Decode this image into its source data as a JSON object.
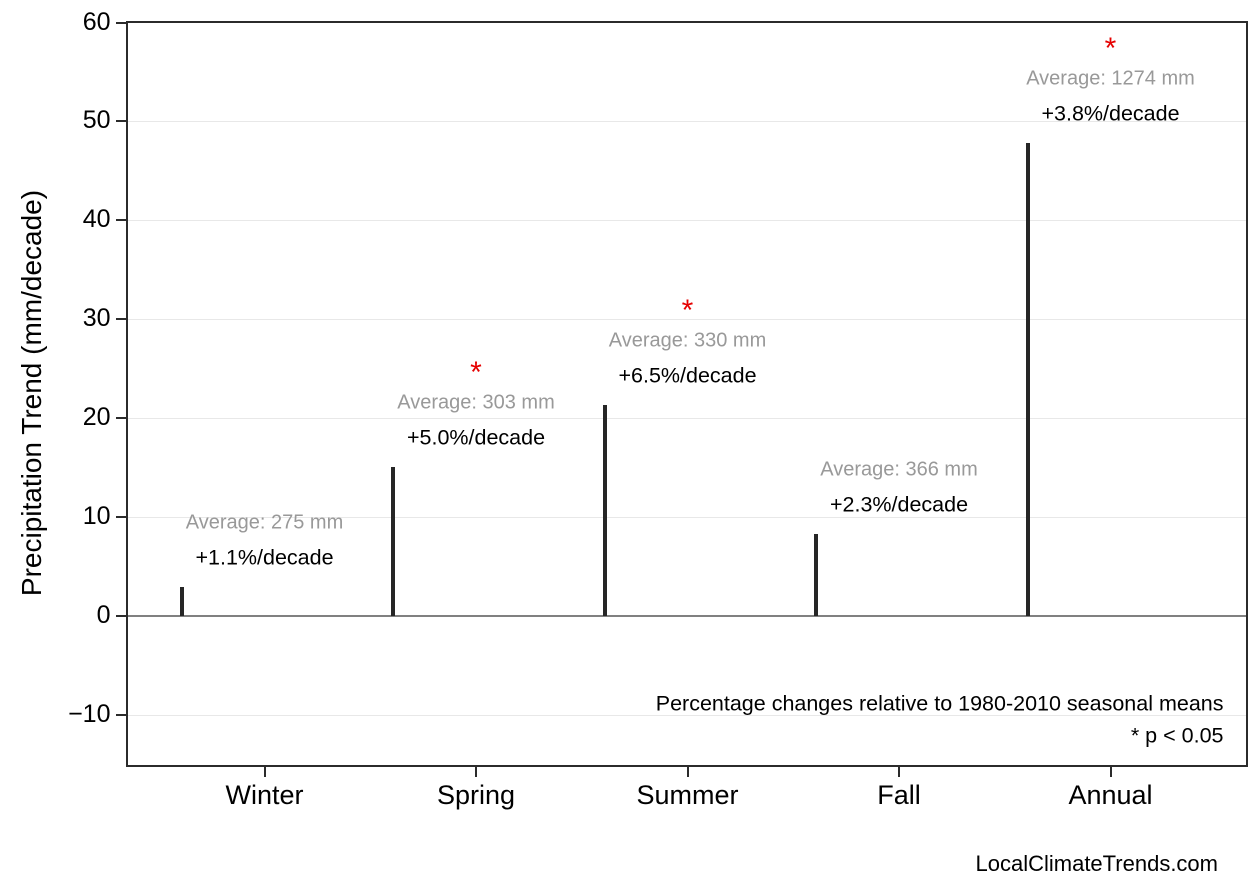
{
  "page": {
    "footer": "LocalClimateTrends.com",
    "background": "#ffffff"
  },
  "chart_data": {
    "type": "bar",
    "title": "",
    "xlabel": "",
    "ylabel": "Precipitation Trend (mm/decade)",
    "categories": [
      "Winter",
      "Spring",
      "Summer",
      "Fall",
      "Annual"
    ],
    "values": [
      3.0,
      15.1,
      21.4,
      8.3,
      47.8
    ],
    "bar_colors": [
      "#5C9EC9",
      "#FEA75B",
      "#68BE6C",
      "#E16A6B",
      "#B194D1"
    ],
    "bar_edge_color": "#262626",
    "averages_mm": [
      275,
      303,
      330,
      366,
      1274
    ],
    "percent_change_per_decade": [
      1.1,
      5.0,
      6.5,
      2.3,
      3.8
    ],
    "significant": [
      false,
      true,
      true,
      false,
      true
    ],
    "bar_labels": [
      {
        "average": "Average: 275 mm",
        "percent": "+1.1%/decade",
        "star": ""
      },
      {
        "average": "Average: 303 mm",
        "percent": "+5.0%/decade",
        "star": "*"
      },
      {
        "average": "Average: 330 mm",
        "percent": "+6.5%/decade",
        "star": "*"
      },
      {
        "average": "Average: 366 mm",
        "percent": "+2.3%/decade",
        "star": ""
      },
      {
        "average": "Average: 1274 mm",
        "percent": "+3.8%/decade",
        "star": "*"
      }
    ],
    "yticks": [
      {
        "v": -10,
        "label": "−10"
      },
      {
        "v": 0,
        "label": "0"
      },
      {
        "v": 10,
        "label": "10"
      },
      {
        "v": 20,
        "label": "20"
      },
      {
        "v": 30,
        "label": "30"
      },
      {
        "v": 40,
        "label": "40"
      },
      {
        "v": 50,
        "label": "50"
      },
      {
        "v": 60,
        "label": "60"
      }
    ],
    "ylim": [
      -14.85,
      60
    ],
    "grid": true,
    "legend": "none",
    "annotations": {
      "note1": "Percentage changes relative to 1980-2010 seasonal means",
      "note2": "* p < 0.05",
      "significance_marker_color": "#e60000"
    },
    "colors": {
      "average_text": "#999999",
      "percent_text": "#000000",
      "grid": "#e8e8e8",
      "zero_line": "#808080",
      "spine": "#2b2b2b"
    }
  }
}
